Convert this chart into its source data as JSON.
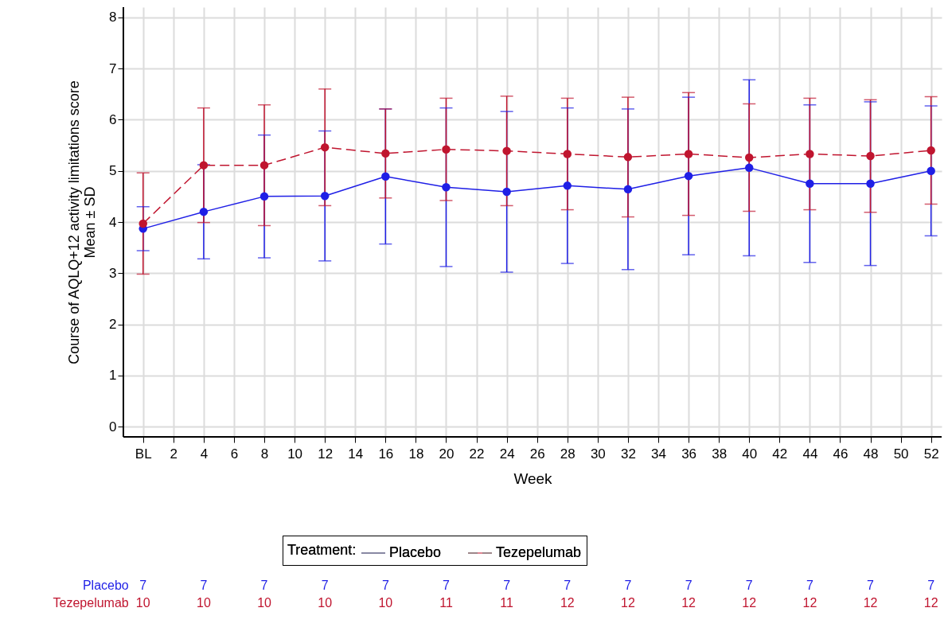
{
  "chart_data": {
    "type": "line",
    "xlabel": "Week",
    "ylabel": "Course of AQLQ+12 activity limitations score\nMean ± SD",
    "legend_title": "Treatment:",
    "legend": "bottom",
    "grid": true,
    "marker": "circle",
    "xlim": [
      -1.3,
      52.7
    ],
    "xticks": [
      {
        "value": 0,
        "label": "BL"
      },
      2,
      4,
      6,
      8,
      10,
      12,
      14,
      16,
      18,
      20,
      22,
      24,
      26,
      28,
      30,
      32,
      34,
      36,
      38,
      40,
      42,
      44,
      46,
      48,
      50,
      52
    ],
    "ylim": [
      -0.2,
      8.2
    ],
    "yticks": [
      0,
      1,
      2,
      3,
      4,
      5,
      6,
      7,
      8
    ],
    "series": [
      {
        "name": "Placebo",
        "color": "#1f1fe6",
        "line_style": "solid",
        "x": [
          0,
          4,
          8,
          12,
          16,
          20,
          24,
          28,
          32,
          36,
          40,
          44,
          48,
          52
        ],
        "values": [
          3.87,
          4.2,
          4.5,
          4.51,
          4.89,
          4.68,
          4.59,
          4.71,
          4.64,
          4.9,
          5.06,
          4.75,
          4.75,
          5.0
        ],
        "errors": [
          0.43,
          0.92,
          1.2,
          1.27,
          1.32,
          1.55,
          1.57,
          1.52,
          1.57,
          1.54,
          1.72,
          1.54,
          1.6,
          1.27
        ]
      },
      {
        "name": "Tezepelumab",
        "color": "#c0152f",
        "line_style": "dashed",
        "x": [
          0,
          4,
          8,
          12,
          16,
          20,
          24,
          28,
          32,
          36,
          40,
          44,
          48,
          52
        ],
        "values": [
          3.97,
          5.11,
          5.11,
          5.46,
          5.34,
          5.42,
          5.39,
          5.33,
          5.27,
          5.33,
          5.26,
          5.33,
          5.29,
          5.4
        ],
        "errors": [
          0.99,
          1.12,
          1.18,
          1.14,
          0.87,
          1.0,
          1.07,
          1.09,
          1.17,
          1.2,
          1.05,
          1.09,
          1.1,
          1.05
        ]
      }
    ],
    "annotations": [
      "Placebo",
      "7",
      "7",
      "7",
      "7",
      "7",
      "7",
      "7",
      "7",
      "7",
      "7",
      "7",
      "7",
      "7",
      "7",
      "Tezepelumab",
      "10",
      "10",
      "10",
      "10",
      "10",
      "11",
      "11",
      "12",
      "12",
      "12",
      "12",
      "12",
      "12",
      "12"
    ]
  }
}
